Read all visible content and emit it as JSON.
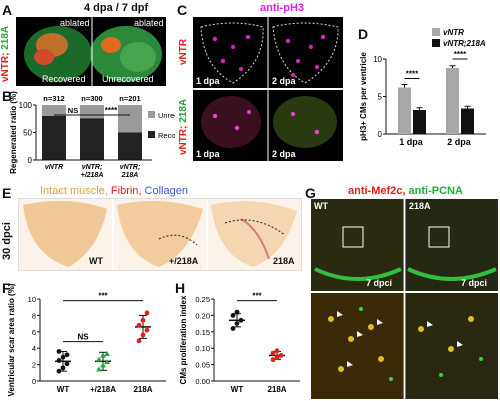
{
  "panelA": {
    "letter": "A",
    "title": "4 dpa / 7 dpf",
    "side_label_red": "vNTR;",
    "side_label_green": " 218A",
    "ablated1": "ablated",
    "ablated2": "ablated",
    "recovered": "Recovered",
    "unrecovered": "Unrecovered"
  },
  "panelB": {
    "letter": "B",
    "chart_data": {
      "type": "bar",
      "stacked": true,
      "ylabel": "Regenerated ratio (%)",
      "ylim": [
        0,
        100
      ],
      "yticks": [
        0,
        50,
        100
      ],
      "categories": [
        "vNTR",
        "vNTR; +/218A",
        "vNTR; 218A"
      ],
      "category_lines": [
        [
          "vNTR"
        ],
        [
          "vNTR;",
          "+/218A"
        ],
        [
          "vNTR;",
          "218A"
        ]
      ],
      "n_labels": [
        "n=312",
        "n=300",
        "n=201"
      ],
      "series": [
        {
          "name": "Recovered",
          "values": [
            80,
            76,
            50
          ],
          "color": "#222222"
        },
        {
          "name": "Unrecovered",
          "values": [
            20,
            24,
            50
          ],
          "color": "#9a9a9a"
        }
      ],
      "sig": [
        "NS",
        "****"
      ]
    }
  },
  "panelC": {
    "letter": "C",
    "title": "anti-pH3",
    "row1_label": "vNTR",
    "row2_label_red": "vNTR;",
    "row2_label_green": " 218A",
    "t1": "1 dpa",
    "t2": "2 dpa",
    "t3": "1 dpa",
    "t4": "2 dpa"
  },
  "panelD": {
    "letter": "D",
    "chart_data": {
      "type": "bar",
      "ylabel": "pH3+ CMs per ventricle",
      "ylim": [
        0,
        10
      ],
      "yticks": [
        0,
        5,
        10
      ],
      "categories": [
        "1 dpa",
        "2 dpa"
      ],
      "series": [
        {
          "name": "vNTR",
          "values": [
            6.2,
            8.8
          ],
          "errors": [
            0.4,
            0.3
          ],
          "color": "#a8a8a8"
        },
        {
          "name": "vNTR;218A",
          "values": [
            3.2,
            3.4
          ],
          "errors": [
            0.3,
            0.3
          ],
          "color": "#111111"
        }
      ],
      "sig": [
        "****",
        "****"
      ]
    }
  },
  "panelE": {
    "letter": "E",
    "legend_intact": "Intact muscle,",
    "legend_fibrin": " Fibrin,",
    "legend_collagen": " Collagen",
    "side_label": "30 dpci",
    "g1": "WT",
    "g2": "+/218A",
    "g3": "218A"
  },
  "panelF": {
    "letter": "F",
    "chart_data": {
      "type": "scatter",
      "ylabel": "Ventricular scar area ratio (%)",
      "ylim": [
        0,
        10
      ],
      "yticks": [
        0,
        2,
        4,
        6,
        8,
        10
      ],
      "categories": [
        "WT",
        "+/218A",
        "218A"
      ],
      "means": [
        2.4,
        2.4,
        6.6
      ],
      "sd": [
        1.2,
        1.1,
        1.4
      ],
      "points": [
        [
          1.2,
          1.6,
          2.1,
          2.5,
          2.9,
          3.2,
          3.6
        ],
        [
          1.4,
          1.9,
          2.3,
          2.6,
          3.1,
          3.3
        ],
        [
          4.9,
          5.6,
          6.2,
          6.8,
          7.4,
          8.3
        ]
      ],
      "colors": [
        "#111111",
        "#1faa3a",
        "#e0201b"
      ],
      "sig": [
        "NS",
        "***"
      ]
    }
  },
  "panelG": {
    "letter": "G",
    "title_red": "anti-Mef2c,",
    "title_green": " anti-PCNA",
    "g1": "WT",
    "g2": "218A",
    "t1": "7 dpci",
    "t2": "7 dpci"
  },
  "panelH": {
    "letter": "H",
    "chart_data": {
      "type": "scatter",
      "ylabel": "CMs proliferation index",
      "ylim": [
        0.0,
        0.25
      ],
      "yticks": [
        0.0,
        0.05,
        0.1,
        0.15,
        0.2,
        0.25
      ],
      "ytick_labels": [
        "0.00",
        "0.05",
        "0.10",
        "0.15",
        "0.20",
        "0.25"
      ],
      "categories": [
        "WT",
        "218A"
      ],
      "means": [
        0.185,
        0.078
      ],
      "sd": [
        0.02,
        0.012
      ],
      "points": [
        [
          0.16,
          0.175,
          0.185,
          0.2,
          0.21
        ],
        [
          0.065,
          0.072,
          0.078,
          0.085,
          0.092
        ]
      ],
      "colors": [
        "#111111",
        "#e0201b"
      ],
      "sig": [
        "***"
      ]
    }
  }
}
